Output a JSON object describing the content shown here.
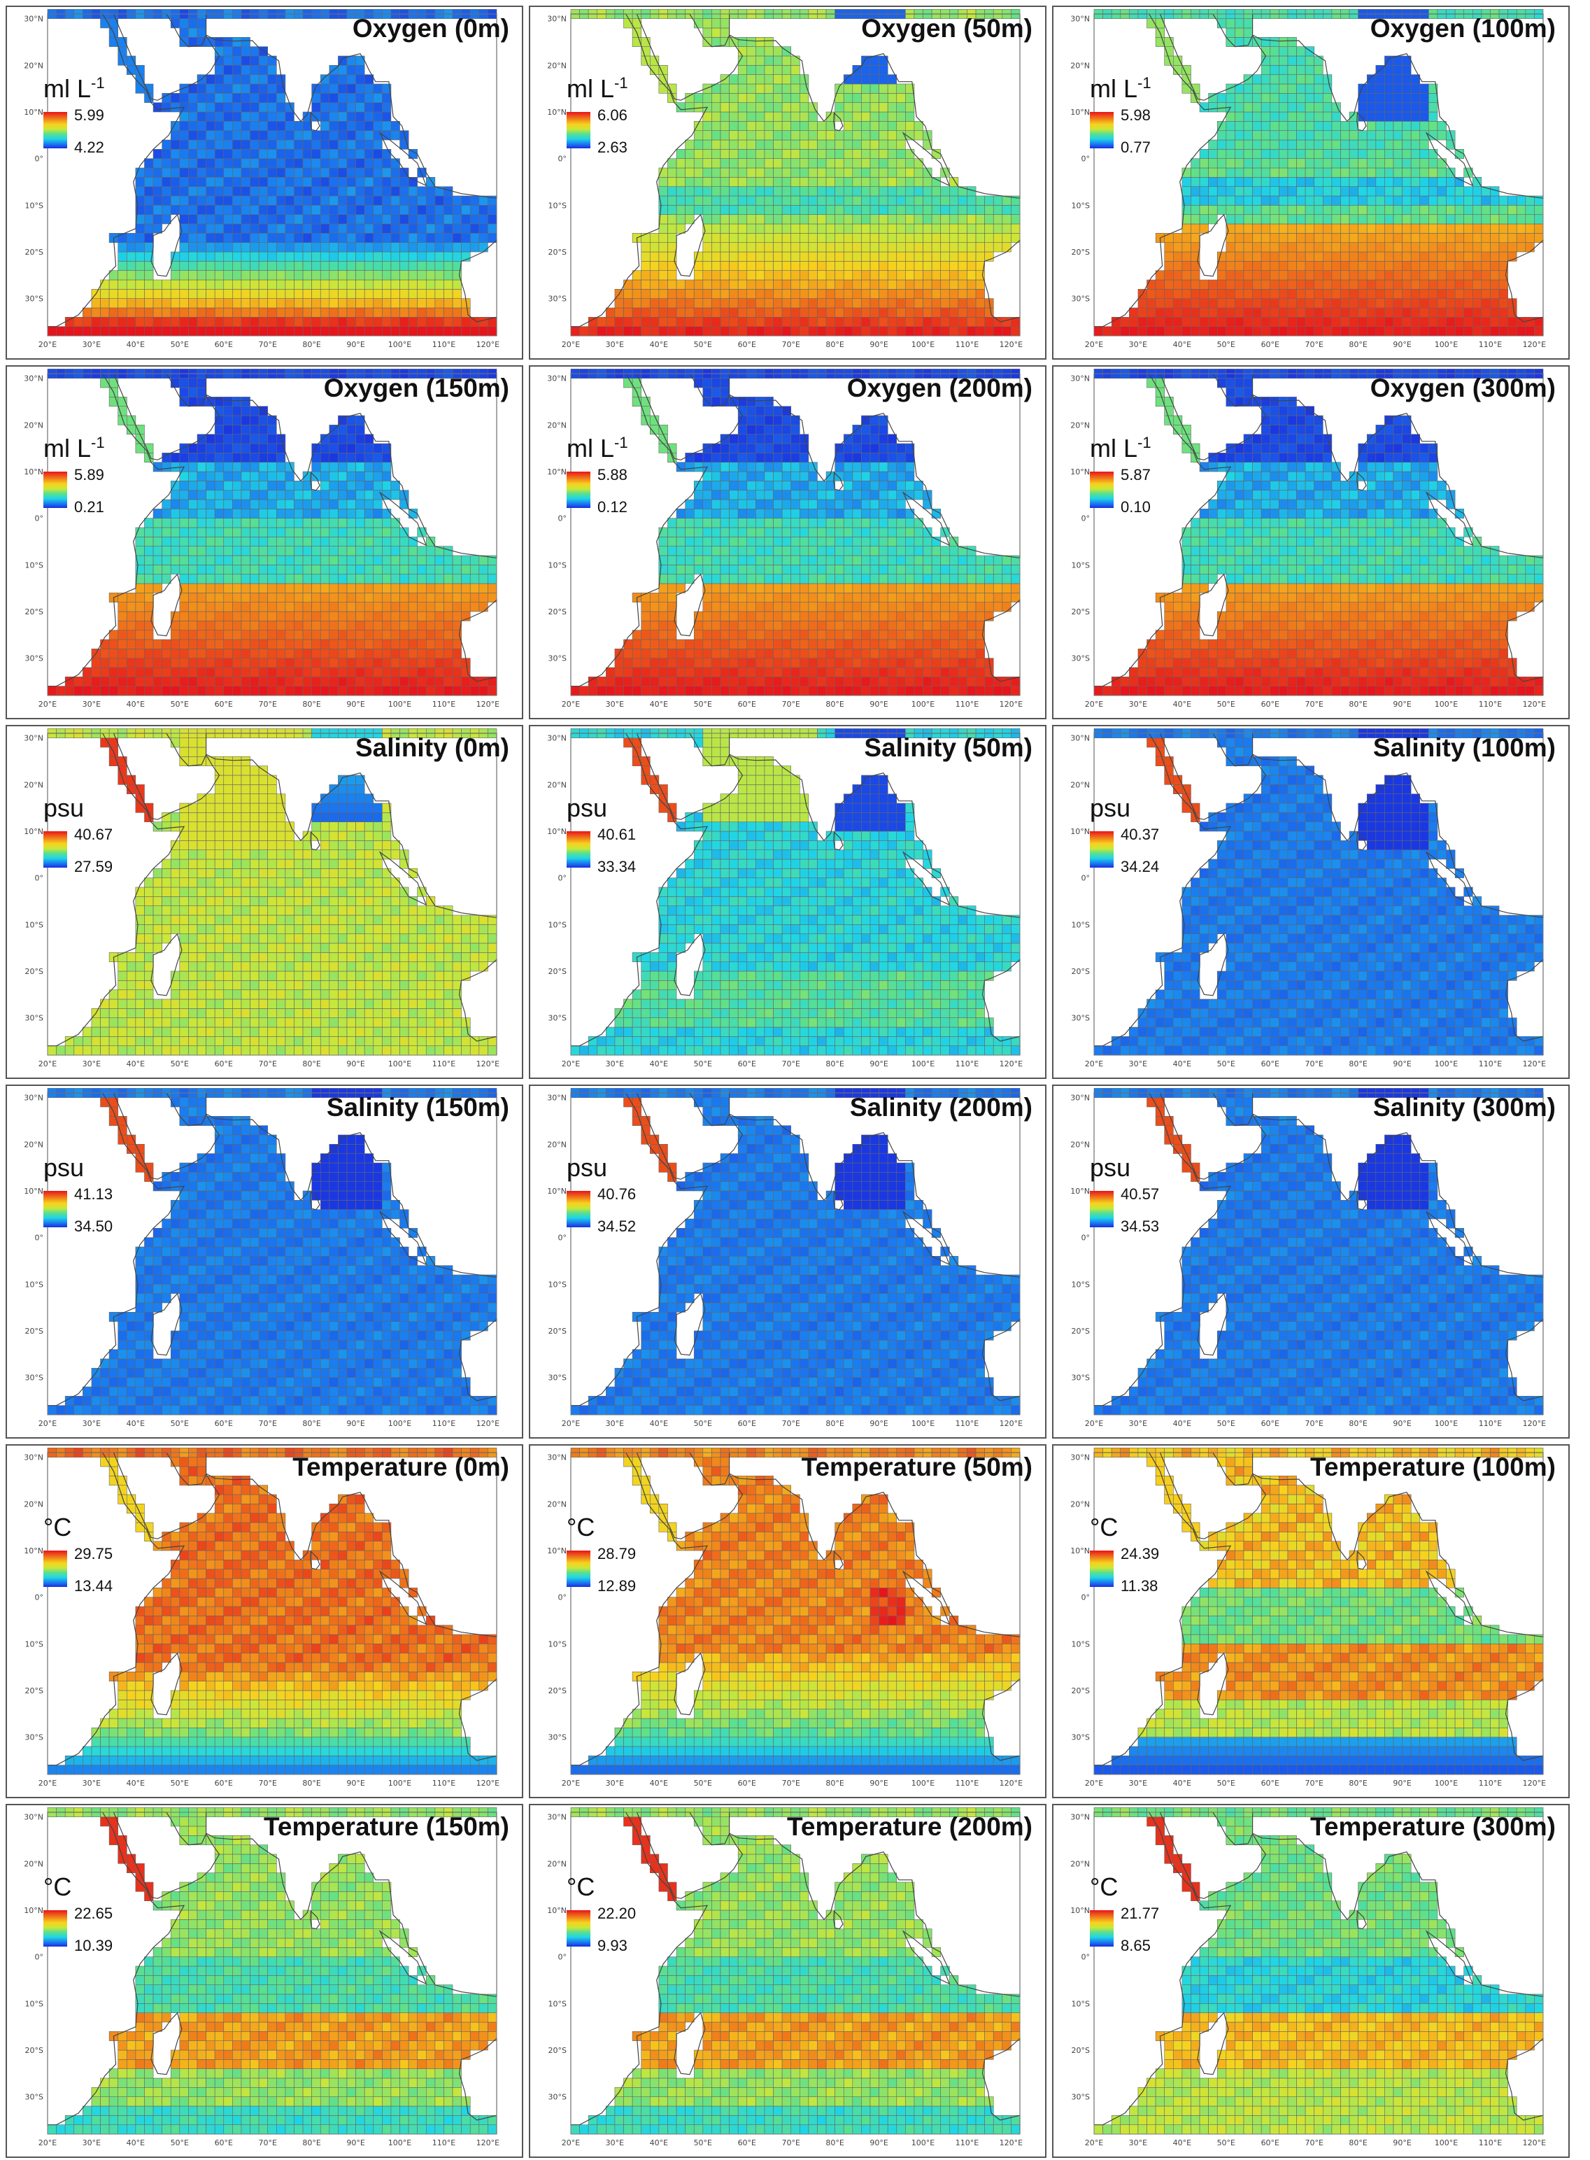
{
  "panels": [
    {
      "title": "Oxygen (0m)",
      "unit": "ml L",
      "unit_sup": "-1",
      "max": "5.99",
      "min": "4.22",
      "field": "o2_0"
    },
    {
      "title": "Oxygen (50m)",
      "unit": "ml L",
      "unit_sup": "-1",
      "max": "6.06",
      "min": "2.63",
      "field": "o2_50"
    },
    {
      "title": "Oxygen (100m)",
      "unit": "ml L",
      "unit_sup": "-1",
      "max": "5.98",
      "min": "0.77",
      "field": "o2_100"
    },
    {
      "title": "Oxygen (150m)",
      "unit": "ml L",
      "unit_sup": "-1",
      "max": "5.89",
      "min": "0.21",
      "field": "o2_deep"
    },
    {
      "title": "Oxygen (200m)",
      "unit": "ml L",
      "unit_sup": "-1",
      "max": "5.88",
      "min": "0.12",
      "field": "o2_deep"
    },
    {
      "title": "Oxygen (300m)",
      "unit": "ml L",
      "unit_sup": "-1",
      "max": "5.87",
      "min": "0.10",
      "field": "o2_deep"
    },
    {
      "title": "Salinity (0m)",
      "unit": "psu",
      "unit_sup": "",
      "max": "40.67",
      "min": "27.59",
      "field": "sal_0"
    },
    {
      "title": "Salinity (50m)",
      "unit": "psu",
      "unit_sup": "",
      "max": "40.61",
      "min": "33.34",
      "field": "sal_50"
    },
    {
      "title": "Salinity (100m)",
      "unit": "psu",
      "unit_sup": "",
      "max": "40.37",
      "min": "34.24",
      "field": "sal_deep"
    },
    {
      "title": "Salinity (150m)",
      "unit": "psu",
      "unit_sup": "",
      "max": "41.13",
      "min": "34.50",
      "field": "sal_deep"
    },
    {
      "title": "Salinity (200m)",
      "unit": "psu",
      "unit_sup": "",
      "max": "40.76",
      "min": "34.52",
      "field": "sal_deep"
    },
    {
      "title": "Salinity (300m)",
      "unit": "psu",
      "unit_sup": "",
      "max": "40.57",
      "min": "34.53",
      "field": "sal_deep"
    },
    {
      "title": "Temperature (0m)",
      "unit": "°C",
      "unit_sup": "",
      "max": "29.75",
      "min": "13.44",
      "field": "t_0"
    },
    {
      "title": "Temperature (50m)",
      "unit": "°C",
      "unit_sup": "",
      "max": "28.79",
      "min": "12.89",
      "field": "t_50"
    },
    {
      "title": "Temperature (100m)",
      "unit": "°C",
      "unit_sup": "",
      "max": "24.39",
      "min": "11.38",
      "field": "t_100"
    },
    {
      "title": "Temperature (150m)",
      "unit": "°C",
      "unit_sup": "",
      "max": "22.65",
      "min": "10.39",
      "field": "t_150"
    },
    {
      "title": "Temperature (200m)",
      "unit": "°C",
      "unit_sup": "",
      "max": "22.20",
      "min": "9.93",
      "field": "t_150"
    },
    {
      "title": "Temperature (300m)",
      "unit": "°C",
      "unit_sup": "",
      "max": "21.77",
      "min": "8.65",
      "field": "t_300"
    }
  ],
  "x_ticks": [
    "20°E",
    "30°E",
    "40°E",
    "50°E",
    "60°E",
    "70°E",
    "80°E",
    "90°E",
    "100°E",
    "110°E",
    "120°E"
  ],
  "y_ticks": [
    "30°N",
    "20°N",
    "10°N",
    "0°",
    "10°S",
    "20°S",
    "30°S"
  ],
  "colors": {
    "land": "#ffffff",
    "gridline": "#666666",
    "coast": "#444444",
    "scale": [
      "#1a2de0",
      "#1a7cf0",
      "#1fd6e6",
      "#5ee08a",
      "#c9e73a",
      "#f7d21d",
      "#f07a1a",
      "#e8141b"
    ]
  }
}
